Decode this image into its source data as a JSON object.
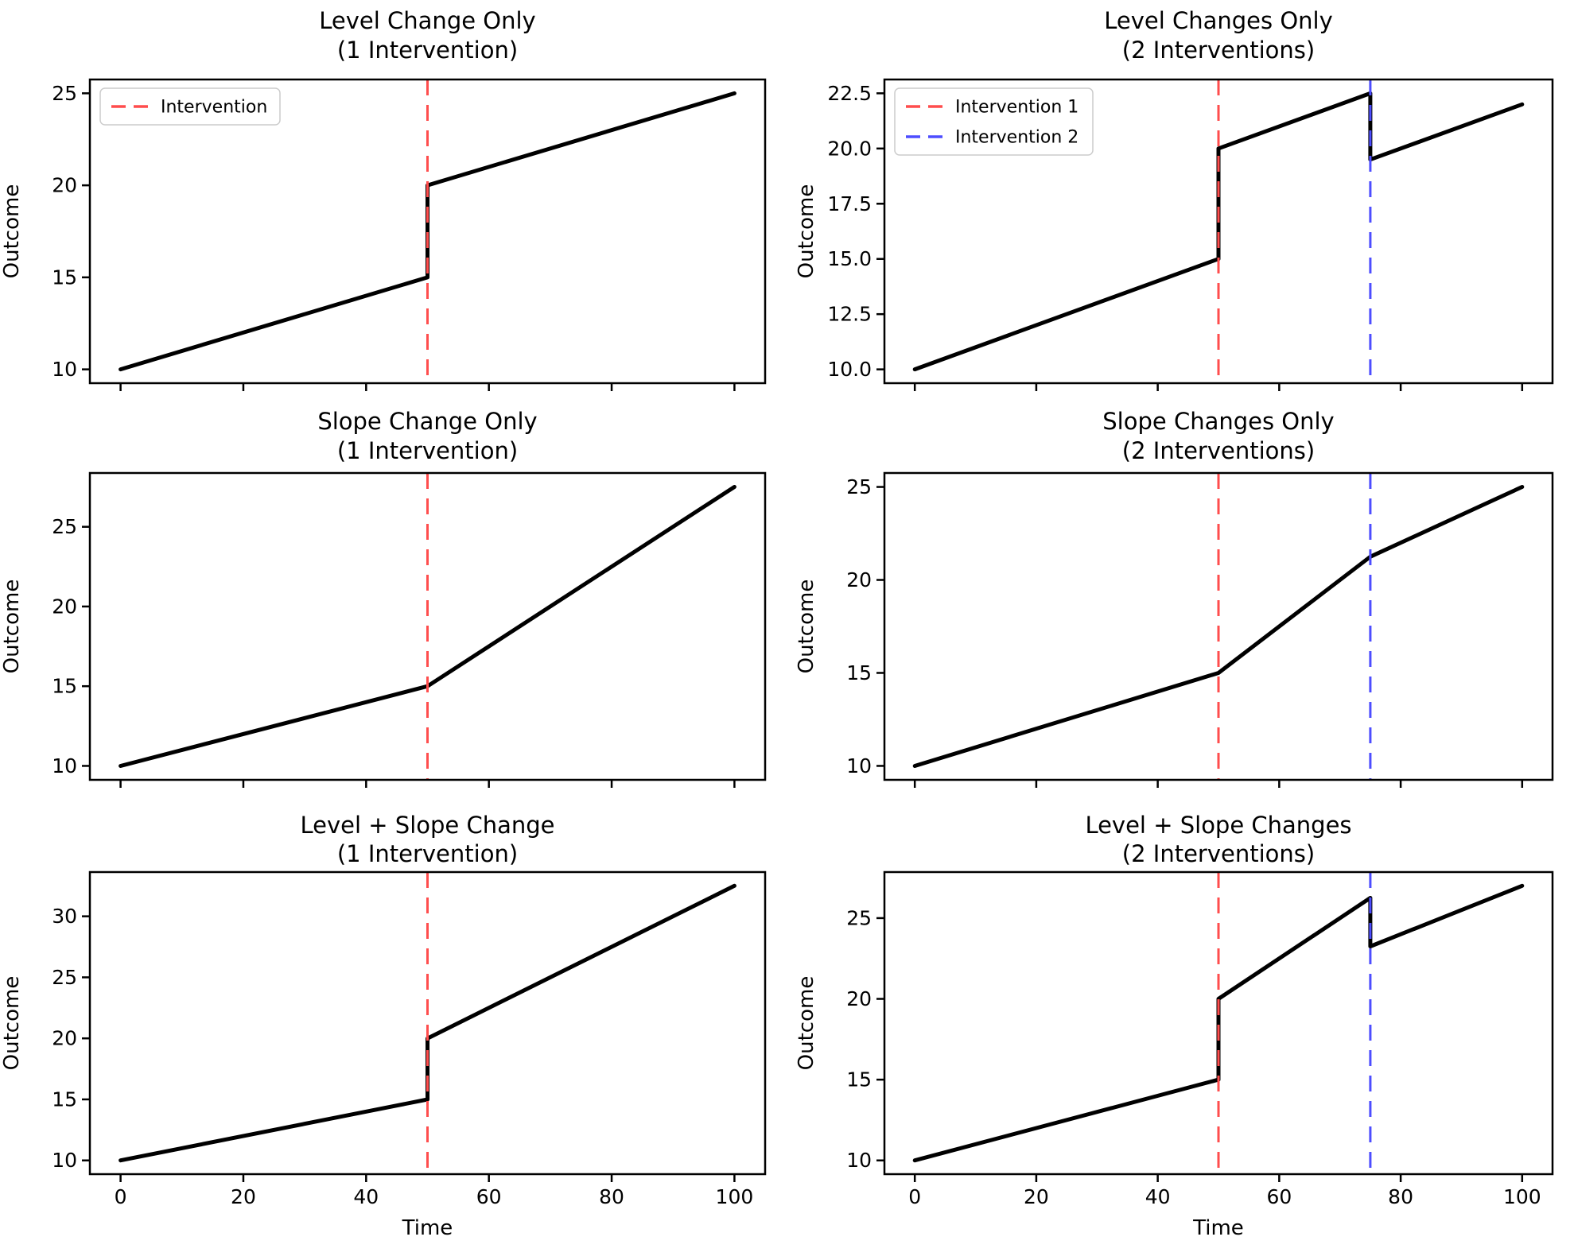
{
  "figure": {
    "background": "#ffffff",
    "series_color": "#000000",
    "axis_color": "#000000",
    "intervention1_color": "#ff4d4d",
    "intervention2_color": "#4d4dff",
    "legend_border_color": "#cccccc"
  },
  "chart_data": [
    {
      "type": "line",
      "title": "Level Change Only",
      "subtitle": "(1 Intervention)",
      "xlabel": "",
      "ylabel": "Outcome",
      "grid": false,
      "xlim": [
        -5,
        105
      ],
      "ylim": [
        9.25,
        25.75
      ],
      "xticks": [
        0,
        20,
        40,
        60,
        80,
        100
      ],
      "xticklabels": [],
      "yticks": [
        10,
        15,
        20,
        25
      ],
      "yticklabels": [
        "10",
        "15",
        "20",
        "25"
      ],
      "series": [
        {
          "name": "Outcome",
          "color": "#000000",
          "points": [
            [
              0,
              10
            ],
            [
              50,
              15
            ],
            [
              50,
              20
            ],
            [
              100,
              25
            ]
          ]
        }
      ],
      "vlines": [
        {
          "x": 50,
          "color": "#ff4d4d",
          "label": "Intervention"
        }
      ],
      "legend": {
        "visible": true,
        "position": "upper-left"
      }
    },
    {
      "type": "line",
      "title": "Level Changes Only",
      "subtitle": "(2 Interventions)",
      "xlabel": "",
      "ylabel": "Outcome",
      "grid": false,
      "xlim": [
        -5,
        105
      ],
      "ylim": [
        9.375,
        23.125
      ],
      "xticks": [
        0,
        20,
        40,
        60,
        80,
        100
      ],
      "xticklabels": [],
      "yticks": [
        10,
        12.5,
        15,
        17.5,
        20,
        22.5
      ],
      "yticklabels": [
        "10.0",
        "12.5",
        "15.0",
        "17.5",
        "20.0",
        "22.5"
      ],
      "series": [
        {
          "name": "Outcome",
          "color": "#000000",
          "points": [
            [
              0,
              10
            ],
            [
              50,
              15
            ],
            [
              50,
              20
            ],
            [
              75,
              22.5
            ],
            [
              75,
              19.5
            ],
            [
              100,
              22
            ]
          ]
        }
      ],
      "vlines": [
        {
          "x": 50,
          "color": "#ff4d4d",
          "label": "Intervention 1"
        },
        {
          "x": 75,
          "color": "#4d4dff",
          "label": "Intervention 2"
        }
      ],
      "legend": {
        "visible": true,
        "position": "upper-left"
      }
    },
    {
      "type": "line",
      "title": "Slope Change Only",
      "subtitle": "(1 Intervention)",
      "xlabel": "",
      "ylabel": "Outcome",
      "grid": false,
      "xlim": [
        -5,
        105
      ],
      "ylim": [
        9.125,
        28.375
      ],
      "xticks": [
        0,
        20,
        40,
        60,
        80,
        100
      ],
      "xticklabels": [],
      "yticks": [
        10,
        15,
        20,
        25
      ],
      "yticklabels": [
        "10",
        "15",
        "20",
        "25"
      ],
      "series": [
        {
          "name": "Outcome",
          "color": "#000000",
          "points": [
            [
              0,
              10
            ],
            [
              50,
              15
            ],
            [
              100,
              27.5
            ]
          ]
        }
      ],
      "vlines": [
        {
          "x": 50,
          "color": "#ff4d4d",
          "label": ""
        }
      ],
      "legend": {
        "visible": false,
        "position": ""
      }
    },
    {
      "type": "line",
      "title": "Slope Changes Only",
      "subtitle": "(2 Interventions)",
      "xlabel": "",
      "ylabel": "Outcome",
      "grid": false,
      "xlim": [
        -5,
        105
      ],
      "ylim": [
        9.25,
        25.75
      ],
      "xticks": [
        0,
        20,
        40,
        60,
        80,
        100
      ],
      "xticklabels": [],
      "yticks": [
        10,
        15,
        20,
        25
      ],
      "yticklabels": [
        "10",
        "15",
        "20",
        "25"
      ],
      "series": [
        {
          "name": "Outcome",
          "color": "#000000",
          "points": [
            [
              0,
              10
            ],
            [
              50,
              15
            ],
            [
              75,
              21.25
            ],
            [
              100,
              25
            ]
          ]
        }
      ],
      "vlines": [
        {
          "x": 50,
          "color": "#ff4d4d",
          "label": ""
        },
        {
          "x": 75,
          "color": "#4d4dff",
          "label": ""
        }
      ],
      "legend": {
        "visible": false,
        "position": ""
      }
    },
    {
      "type": "line",
      "title": "Level + Slope Change",
      "subtitle": "(1 Intervention)",
      "xlabel": "Time",
      "ylabel": "Outcome",
      "grid": false,
      "xlim": [
        -5,
        105
      ],
      "ylim": [
        8.875,
        33.625
      ],
      "xticks": [
        0,
        20,
        40,
        60,
        80,
        100
      ],
      "xticklabels": [
        "0",
        "20",
        "40",
        "60",
        "80",
        "100"
      ],
      "yticks": [
        10,
        15,
        20,
        25,
        30
      ],
      "yticklabels": [
        "10",
        "15",
        "20",
        "25",
        "30"
      ],
      "series": [
        {
          "name": "Outcome",
          "color": "#000000",
          "points": [
            [
              0,
              10
            ],
            [
              50,
              15
            ],
            [
              50,
              20
            ],
            [
              100,
              32.5
            ]
          ]
        }
      ],
      "vlines": [
        {
          "x": 50,
          "color": "#ff4d4d",
          "label": ""
        }
      ],
      "legend": {
        "visible": false,
        "position": ""
      }
    },
    {
      "type": "line",
      "title": "Level + Slope Changes",
      "subtitle": "(2 Interventions)",
      "xlabel": "Time",
      "ylabel": "Outcome",
      "grid": false,
      "xlim": [
        -5,
        105
      ],
      "ylim": [
        9.15,
        27.85
      ],
      "xticks": [
        0,
        20,
        40,
        60,
        80,
        100
      ],
      "xticklabels": [
        "0",
        "20",
        "40",
        "60",
        "80",
        "100"
      ],
      "yticks": [
        10,
        15,
        20,
        25
      ],
      "yticklabels": [
        "10",
        "15",
        "20",
        "25"
      ],
      "series": [
        {
          "name": "Outcome",
          "color": "#000000",
          "points": [
            [
              0,
              10
            ],
            [
              50,
              15
            ],
            [
              50,
              20
            ],
            [
              75,
              26.25
            ],
            [
              75,
              23.25
            ],
            [
              100,
              27
            ]
          ]
        }
      ],
      "vlines": [
        {
          "x": 50,
          "color": "#ff4d4d",
          "label": ""
        },
        {
          "x": 75,
          "color": "#4d4dff",
          "label": ""
        }
      ],
      "legend": {
        "visible": false,
        "position": ""
      }
    }
  ]
}
